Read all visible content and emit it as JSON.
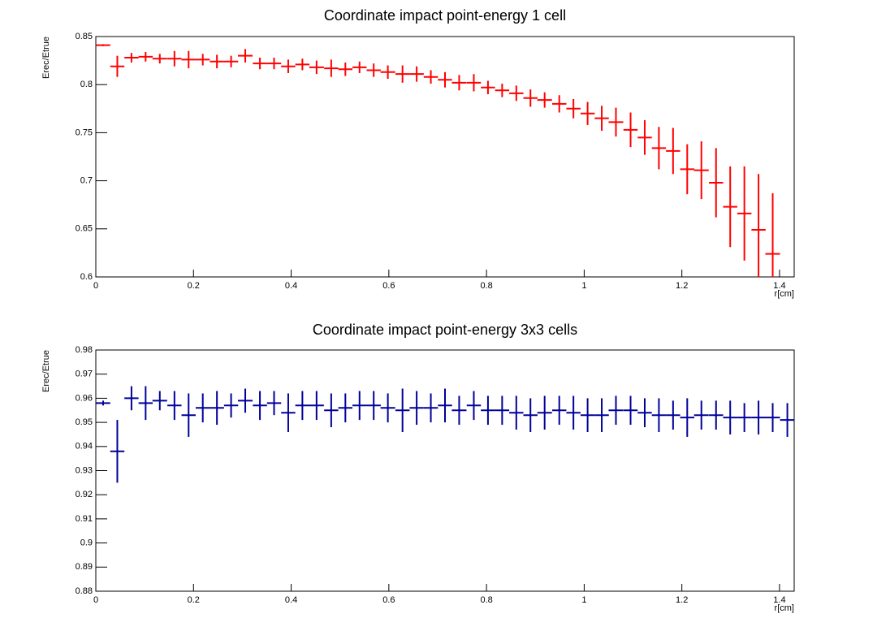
{
  "chart_data": [
    {
      "type": "errorbar",
      "title": "Coordinate impact point-energy 1 cell",
      "x_label": "r[cm]",
      "y_label": "Erec/Etrue",
      "x": [
        0.015,
        0.044,
        0.073,
        0.102,
        0.131,
        0.161,
        0.19,
        0.219,
        0.248,
        0.277,
        0.306,
        0.336,
        0.365,
        0.394,
        0.423,
        0.452,
        0.482,
        0.511,
        0.54,
        0.569,
        0.598,
        0.628,
        0.657,
        0.686,
        0.715,
        0.744,
        0.774,
        0.803,
        0.832,
        0.861,
        0.89,
        0.919,
        0.949,
        0.978,
        1.007,
        1.036,
        1.065,
        1.095,
        1.124,
        1.153,
        1.182,
        1.211,
        1.24,
        1.27,
        1.299,
        1.328,
        1.357,
        1.386,
        1.416
      ],
      "series": [
        {
          "color": "#ff0000",
          "values": [
            0.841,
            0.819,
            0.828,
            0.829,
            0.827,
            0.827,
            0.826,
            0.826,
            0.824,
            0.824,
            0.83,
            0.822,
            0.822,
            0.819,
            0.821,
            0.818,
            0.817,
            0.816,
            0.818,
            0.815,
            0.813,
            0.811,
            0.811,
            0.808,
            0.805,
            0.802,
            0.802,
            0.797,
            0.794,
            0.791,
            0.786,
            0.784,
            0.78,
            0.775,
            0.77,
            0.765,
            0.761,
            0.753,
            0.745,
            0.734,
            0.731,
            0.712,
            0.711,
            0.698,
            0.673,
            0.666,
            0.649,
            0.624,
            null
          ],
          "errors": [
            0.001,
            0.011,
            0.005,
            0.005,
            0.005,
            0.008,
            0.009,
            0.006,
            0.007,
            0.006,
            0.007,
            0.006,
            0.006,
            0.007,
            0.006,
            0.007,
            0.009,
            0.007,
            0.006,
            0.007,
            0.007,
            0.009,
            0.008,
            0.007,
            0.008,
            0.008,
            0.009,
            0.007,
            0.007,
            0.008,
            0.009,
            0.008,
            0.009,
            0.01,
            0.012,
            0.013,
            0.015,
            0.018,
            0.018,
            0.022,
            0.024,
            0.026,
            0.03,
            0.036,
            0.042,
            0.049,
            0.058,
            0.063,
            null
          ]
        }
      ],
      "xlim": [
        0,
        1.43
      ],
      "xticks": [
        0,
        0.2,
        0.4,
        0.6,
        0.8,
        1,
        1.2,
        1.4
      ],
      "ylim": [
        0.6,
        0.85
      ],
      "yticks": [
        0.6,
        0.65,
        0.7,
        0.75,
        0.8,
        0.85
      ]
    },
    {
      "type": "errorbar",
      "title": "Coordinate impact point-energy 3x3 cells",
      "x_label": "r[cm]",
      "y_label": "Erec/Etrue",
      "x": [
        0.015,
        0.044,
        0.073,
        0.102,
        0.131,
        0.161,
        0.19,
        0.219,
        0.248,
        0.277,
        0.306,
        0.336,
        0.365,
        0.394,
        0.423,
        0.452,
        0.482,
        0.511,
        0.54,
        0.569,
        0.598,
        0.628,
        0.657,
        0.686,
        0.715,
        0.744,
        0.774,
        0.803,
        0.832,
        0.861,
        0.89,
        0.919,
        0.949,
        0.978,
        1.007,
        1.036,
        1.065,
        1.095,
        1.124,
        1.153,
        1.182,
        1.211,
        1.24,
        1.27,
        1.299,
        1.328,
        1.357,
        1.386,
        1.416
      ],
      "series": [
        {
          "color": "#000099",
          "values": [
            0.958,
            0.938,
            0.96,
            0.958,
            0.959,
            0.957,
            0.953,
            0.956,
            0.956,
            0.957,
            0.959,
            0.957,
            0.958,
            0.954,
            0.957,
            0.957,
            0.955,
            0.956,
            0.957,
            0.957,
            0.956,
            0.955,
            0.956,
            0.956,
            0.957,
            0.955,
            0.957,
            0.955,
            0.955,
            0.954,
            0.953,
            0.954,
            0.955,
            0.954,
            0.953,
            0.953,
            0.955,
            0.955,
            0.954,
            0.953,
            0.953,
            0.952,
            0.953,
            0.953,
            0.952,
            0.952,
            0.952,
            0.952,
            0.951
          ],
          "errors": [
            0.001,
            0.013,
            0.005,
            0.007,
            0.004,
            0.006,
            0.009,
            0.006,
            0.007,
            0.005,
            0.005,
            0.006,
            0.005,
            0.008,
            0.006,
            0.006,
            0.007,
            0.006,
            0.006,
            0.006,
            0.006,
            0.009,
            0.007,
            0.006,
            0.007,
            0.006,
            0.006,
            0.006,
            0.006,
            0.007,
            0.007,
            0.007,
            0.006,
            0.007,
            0.007,
            0.007,
            0.006,
            0.006,
            0.006,
            0.007,
            0.006,
            0.008,
            0.006,
            0.006,
            0.007,
            0.006,
            0.007,
            0.006,
            0.007
          ]
        }
      ],
      "xlim": [
        0,
        1.43
      ],
      "xticks": [
        0,
        0.2,
        0.4,
        0.6,
        0.8,
        1,
        1.2,
        1.4
      ],
      "ylim": [
        0.88,
        0.98
      ],
      "yticks": [
        0.88,
        0.89,
        0.9,
        0.91,
        0.92,
        0.93,
        0.94,
        0.95,
        0.96,
        0.97,
        0.98
      ]
    }
  ]
}
